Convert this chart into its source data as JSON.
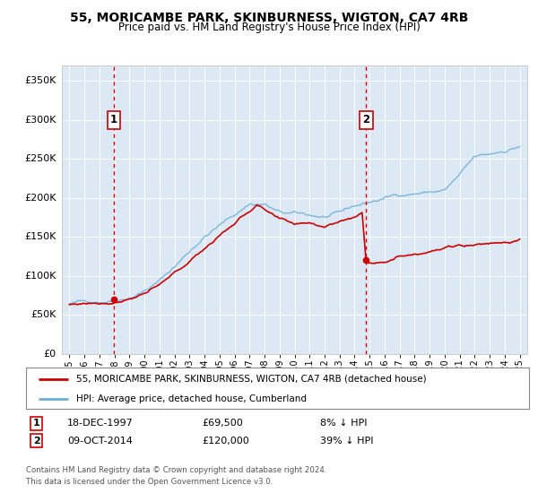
{
  "title": "55, MORICAMBE PARK, SKINBURNESS, WIGTON, CA7 4RB",
  "subtitle": "Price paid vs. HM Land Registry's House Price Index (HPI)",
  "xlim": [
    1994.5,
    2025.5
  ],
  "ylim": [
    0,
    370000
  ],
  "yticks": [
    0,
    50000,
    100000,
    150000,
    200000,
    250000,
    300000,
    350000
  ],
  "ytick_labels": [
    "£0",
    "£50K",
    "£100K",
    "£150K",
    "£200K",
    "£250K",
    "£300K",
    "£350K"
  ],
  "sale1_date": 1997.96,
  "sale1_price": 69500,
  "sale1_label": "1",
  "sale1_text": "18-DEC-1997",
  "sale1_amount": "£69,500",
  "sale1_pct": "8% ↓ HPI",
  "sale2_date": 2014.77,
  "sale2_price": 120000,
  "sale2_label": "2",
  "sale2_text": "09-OCT-2014",
  "sale2_amount": "£120,000",
  "sale2_pct": "39% ↓ HPI",
  "hpi_color": "#6baed6",
  "price_color": "#cc0000",
  "vline_color": "#cc0000",
  "legend1": "55, MORICAMBE PARK, SKINBURNESS, WIGTON, CA7 4RB (detached house)",
  "legend2": "HPI: Average price, detached house, Cumberland",
  "footer1": "Contains HM Land Registry data © Crown copyright and database right 2024.",
  "footer2": "This data is licensed under the Open Government Licence v3.0.",
  "background_color": "#dce9f5",
  "plot_bg": "#ffffff",
  "grid_color": "#ffffff",
  "outer_grid_color": "#cccccc"
}
